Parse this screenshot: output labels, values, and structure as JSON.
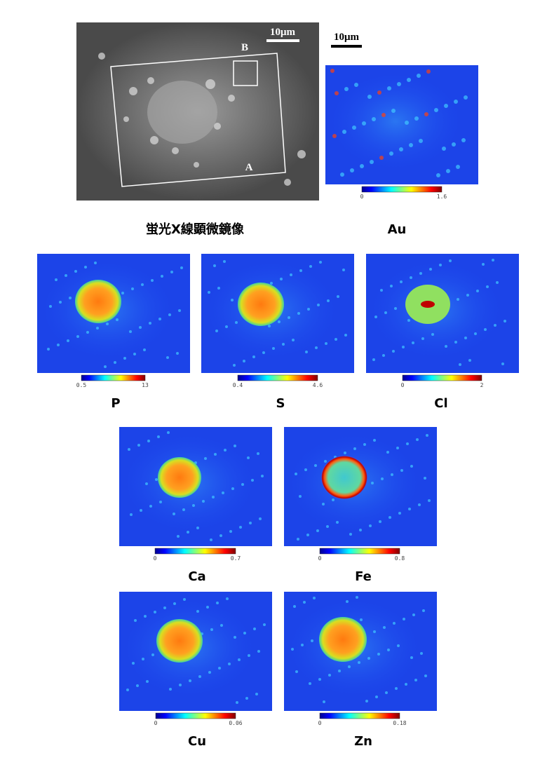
{
  "fluorescence": {
    "title": "蛍光X線顕微鏡像",
    "scale_label": "10μm",
    "region_b": "B",
    "region_a": "A"
  },
  "au_scale_label": "10μm",
  "maps": [
    {
      "element": "Au",
      "min": 0,
      "max": 1.6
    },
    {
      "element": "P",
      "min": 0.5,
      "max": 13
    },
    {
      "element": "S",
      "min": 0.4,
      "max": 4.6
    },
    {
      "element": "Cl",
      "min": 0,
      "max": 2
    },
    {
      "element": "Ca",
      "min": 0,
      "max": 0.7
    },
    {
      "element": "Fe",
      "min": 0,
      "max": 0.8
    },
    {
      "element": "Cu",
      "min": 0,
      "max": 0.06
    },
    {
      "element": "Zn",
      "min": 0,
      "max": 0.18
    }
  ]
}
